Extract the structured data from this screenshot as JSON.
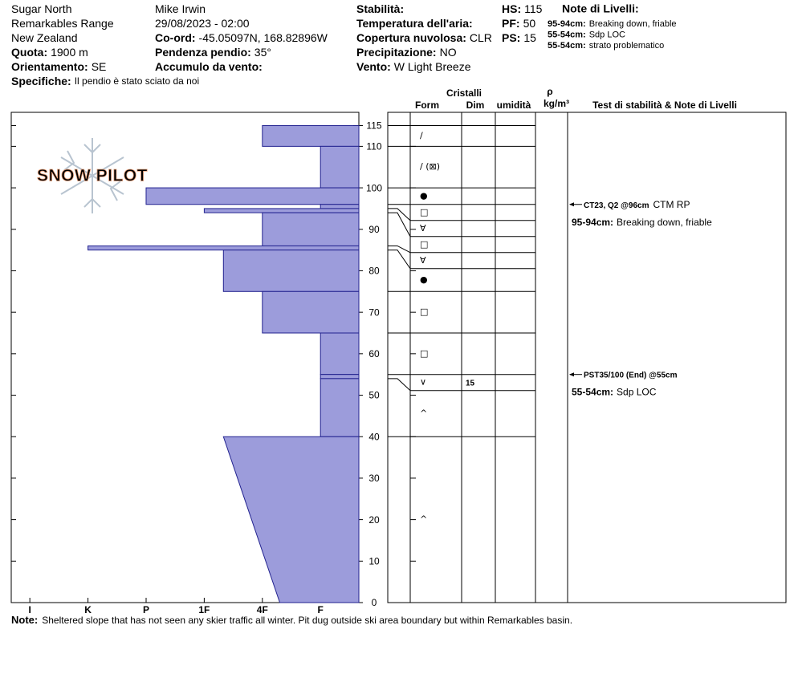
{
  "header": {
    "col1": [
      {
        "value": "Sugar North"
      },
      {
        "value": "Remarkables Range"
      },
      {
        "value": "New Zealand"
      },
      {
        "label": "Quota:",
        "value": "1900 m"
      },
      {
        "label": "Orientamento:",
        "value": "SE"
      }
    ],
    "col2": [
      {
        "value": "Mike Irwin"
      },
      {
        "value": "29/08/2023 - 02:00"
      },
      {
        "label": "Co-ord:",
        "value": "-45.05097N, 168.82896W"
      },
      {
        "label": "Pendenza pendio:",
        "value": "35°"
      },
      {
        "label": "Accumulo da vento:"
      }
    ],
    "col3": [
      {
        "label": "Stabilità:"
      },
      {
        "label": "Temperatura dell'aria:"
      },
      {
        "label": "Copertura nuvolosa:",
        "value": "CLR"
      },
      {
        "label": "Precipitazione:",
        "value": "NO"
      },
      {
        "label": "Vento:",
        "value": "W Light Breeze"
      }
    ],
    "col4": [
      {
        "label": "HS:",
        "value": "115"
      },
      {
        "label": "PF:",
        "value": "50"
      },
      {
        "label": "PS:",
        "value": "15"
      }
    ],
    "specifiche": {
      "label": "Specifiche:",
      "value": "Il pendio è stato sciato da noi"
    },
    "layer_notes": {
      "title": "Note di Livelli:",
      "items": [
        {
          "range": "95-94cm:",
          "text": "Breaking down, friable"
        },
        {
          "range": "55-54cm:",
          "text": "Sdp LOC"
        },
        {
          "range": "55-54cm:",
          "text": "strato problematico"
        }
      ]
    }
  },
  "logo": "SNOW PILOT",
  "columns": {
    "cristalli": "Cristalli",
    "form": "Form",
    "dim": "Dim",
    "umidita": "umidità",
    "rho": "ρ",
    "density_unit": "kg/m³",
    "tests": "Test di stabilità & Note di Livelli"
  },
  "profile": {
    "depth_lim": [
      0,
      118.2
    ],
    "depth_ticks": [
      0,
      10,
      20,
      30,
      40,
      50,
      60,
      70,
      80,
      90,
      100,
      110,
      115
    ],
    "hardness_lim": [
      0.34,
      6.32
    ],
    "hardness_ticks": [
      {
        "value": 6,
        "label": "I"
      },
      {
        "value": 5,
        "label": "K"
      },
      {
        "value": 4,
        "label": "P"
      },
      {
        "value": 3,
        "label": "1F"
      },
      {
        "value": 2,
        "label": "4F"
      },
      {
        "value": 1,
        "label": "F"
      }
    ],
    "bar_color": "#9c9cdb",
    "bar_stroke": "#22228f",
    "layers": [
      {
        "top": 115,
        "bottom": 110,
        "hardness": 2,
        "form": "/"
      },
      {
        "top": 110,
        "bottom": 100,
        "hardness": 1,
        "form": "/ (⊠)"
      },
      {
        "top": 100,
        "bottom": 96,
        "hardness": 4,
        "form": "●"
      },
      {
        "top": 96,
        "bottom": 95,
        "hardness": 1,
        "form": "□"
      },
      {
        "top": 95,
        "bottom": 94,
        "hardness": 3,
        "form": "∀"
      },
      {
        "top": 94,
        "bottom": 86,
        "hardness": 2,
        "form": "□"
      },
      {
        "top": 86,
        "bottom": 85,
        "hardness": 5,
        "form": "∀"
      },
      {
        "top": 85,
        "bottom": 75,
        "hardness": 2.67,
        "form": "●"
      },
      {
        "top": 75,
        "bottom": 65,
        "hardness": 2,
        "form": "□"
      },
      {
        "top": 65,
        "bottom": 55,
        "hardness": 1,
        "form": "□"
      },
      {
        "top": 55,
        "bottom": 54,
        "hardness": 1,
        "form": "∨",
        "size": "15"
      },
      {
        "top": 54,
        "bottom": 40,
        "hardness": 1,
        "form": "^"
      },
      {
        "top": 40,
        "bottom": 0,
        "hardness": 2.67,
        "hardness_bottom": 1.7,
        "form": "^"
      }
    ]
  },
  "tests": [
    {
      "depth": 96,
      "code": "CT23, Q2 @96cm",
      "detail": "CTM RP",
      "note_range": "95-94cm:",
      "note": "Breaking down, friable"
    },
    {
      "depth": 55,
      "code": "PST35/100 (End) @55cm",
      "note_range": "55-54cm:",
      "note": "Sdp LOC"
    }
  ],
  "footer": {
    "label": "Note:",
    "text": "Sheltered slope that has not seen any skier traffic all winter. Pit dug outside ski area boundary but within Remarkables basin."
  }
}
